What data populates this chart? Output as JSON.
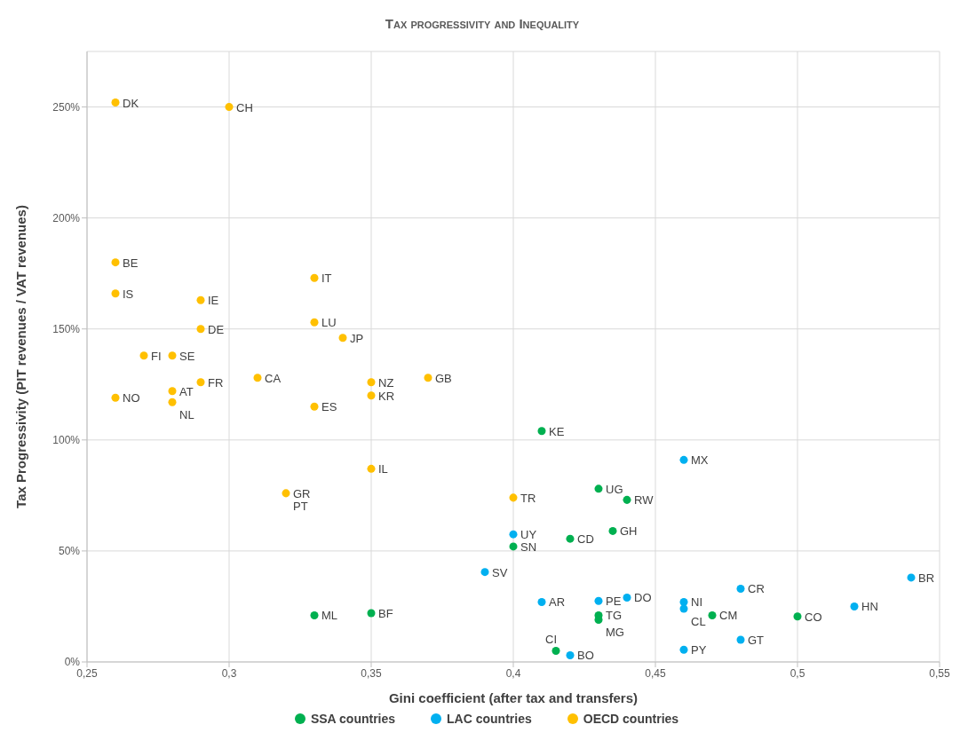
{
  "chart_data": {
    "type": "scatter",
    "title": "Tax progressivity and Inequality",
    "xlabel": "Gini coefficient (after tax and transfers)",
    "ylabel": "Tax Progressivity (PIT revenues / VAT revenues)",
    "xlim": [
      0.25,
      0.55
    ],
    "xticks": [
      {
        "value": 0.25,
        "label": "0,25"
      },
      {
        "value": 0.3,
        "label": "0,3"
      },
      {
        "value": 0.35,
        "label": "0,35"
      },
      {
        "value": 0.4,
        "label": "0,4"
      },
      {
        "value": 0.45,
        "label": "0,45"
      },
      {
        "value": 0.5,
        "label": "0,5"
      },
      {
        "value": 0.55,
        "label": "0,55"
      }
    ],
    "ylim": [
      0,
      275
    ],
    "yticks": [
      {
        "value": 0,
        "label": "0%"
      },
      {
        "value": 50,
        "label": "50%"
      },
      {
        "value": 100,
        "label": "100%"
      },
      {
        "value": 150,
        "label": "150%"
      },
      {
        "value": 200,
        "label": "200%"
      },
      {
        "value": 250,
        "label": "250%"
      }
    ],
    "grid": true,
    "legend": "bottom",
    "marker": "circle",
    "series": [
      {
        "name": "SSA countries",
        "color": "#00b050",
        "x": [
          0.41,
          0.43,
          0.44,
          0.435,
          0.42,
          0.4,
          0.33,
          0.35,
          0.47,
          0.5,
          0.43,
          0.43,
          0.415
        ],
        "values": [
          104,
          78,
          73,
          59,
          55.5,
          52,
          21,
          22,
          21,
          20.5,
          21,
          19,
          5
        ]
      },
      {
        "name": "LAC countries",
        "color": "#00b0f0",
        "x": [
          0.46,
          0.4,
          0.39,
          0.41,
          0.43,
          0.44,
          0.46,
          0.46,
          0.48,
          0.54,
          0.52,
          0.48,
          0.46,
          0.42
        ],
        "values": [
          91,
          57.5,
          40.5,
          27,
          27.5,
          29,
          27,
          24,
          33,
          38,
          25,
          10,
          5.5,
          3
        ]
      },
      {
        "name": "OECD countries",
        "color": "#ffc000",
        "x": [
          0.26,
          0.3,
          0.26,
          0.26,
          0.33,
          0.29,
          0.33,
          0.29,
          0.34,
          0.27,
          0.28,
          0.31,
          0.37,
          0.29,
          0.35,
          0.28,
          0.35,
          0.26,
          0.28,
          0.33,
          0.35,
          0.32,
          0.4
        ],
        "values": [
          252,
          250,
          180,
          166,
          173,
          163,
          153,
          150,
          146,
          138,
          138,
          128,
          128,
          126,
          126,
          122,
          120,
          119,
          117,
          115,
          87,
          76,
          74
        ]
      }
    ],
    "annotations": [
      {
        "text": "KE",
        "x": 0.41,
        "y": 104
      },
      {
        "text": "UG",
        "x": 0.43,
        "y": 78
      },
      {
        "text": "RW",
        "x": 0.44,
        "y": 73
      },
      {
        "text": "GH",
        "x": 0.435,
        "y": 59
      },
      {
        "text": "CD",
        "x": 0.42,
        "y": 55.5
      },
      {
        "text": "SN",
        "x": 0.4,
        "y": 52
      },
      {
        "text": "ML",
        "x": 0.33,
        "y": 21
      },
      {
        "text": "BF",
        "x": 0.35,
        "y": 22
      },
      {
        "text": "CM",
        "x": 0.47,
        "y": 21
      },
      {
        "text": "CO",
        "x": 0.5,
        "y": 20.5
      },
      {
        "text": "TG",
        "x": 0.43,
        "y": 21
      },
      {
        "text": "MG",
        "x": 0.43,
        "y": 19
      },
      {
        "text": "CI",
        "x": 0.415,
        "y": 5
      },
      {
        "text": "MX",
        "x": 0.46,
        "y": 91
      },
      {
        "text": "UY",
        "x": 0.4,
        "y": 57.5
      },
      {
        "text": "SV",
        "x": 0.39,
        "y": 40.5
      },
      {
        "text": "AR",
        "x": 0.41,
        "y": 27
      },
      {
        "text": "PE",
        "x": 0.43,
        "y": 27.5
      },
      {
        "text": "DO",
        "x": 0.44,
        "y": 29
      },
      {
        "text": "NI",
        "x": 0.46,
        "y": 27
      },
      {
        "text": "CL",
        "x": 0.46,
        "y": 24
      },
      {
        "text": "CR",
        "x": 0.48,
        "y": 33
      },
      {
        "text": "BR",
        "x": 0.54,
        "y": 38
      },
      {
        "text": "HN",
        "x": 0.52,
        "y": 25
      },
      {
        "text": "GT",
        "x": 0.48,
        "y": 10
      },
      {
        "text": "PY",
        "x": 0.46,
        "y": 5.5
      },
      {
        "text": "BO",
        "x": 0.42,
        "y": 3
      },
      {
        "text": "DK",
        "x": 0.26,
        "y": 252
      },
      {
        "text": "CH",
        "x": 0.3,
        "y": 250
      },
      {
        "text": "BE",
        "x": 0.26,
        "y": 180
      },
      {
        "text": "IS",
        "x": 0.26,
        "y": 166
      },
      {
        "text": "IT",
        "x": 0.33,
        "y": 173
      },
      {
        "text": "IE",
        "x": 0.29,
        "y": 163
      },
      {
        "text": "LU",
        "x": 0.33,
        "y": 153
      },
      {
        "text": "DE",
        "x": 0.29,
        "y": 150
      },
      {
        "text": "JP",
        "x": 0.34,
        "y": 146
      },
      {
        "text": "FI",
        "x": 0.27,
        "y": 138
      },
      {
        "text": "SE",
        "x": 0.28,
        "y": 138
      },
      {
        "text": "CA",
        "x": 0.31,
        "y": 128
      },
      {
        "text": "GB",
        "x": 0.37,
        "y": 128
      },
      {
        "text": "FR",
        "x": 0.29,
        "y": 126
      },
      {
        "text": "NZ",
        "x": 0.35,
        "y": 126
      },
      {
        "text": "AT",
        "x": 0.28,
        "y": 122
      },
      {
        "text": "KR",
        "x": 0.35,
        "y": 120
      },
      {
        "text": "NO",
        "x": 0.26,
        "y": 119
      },
      {
        "text": "NL",
        "x": 0.28,
        "y": 117
      },
      {
        "text": "ES",
        "x": 0.33,
        "y": 115
      },
      {
        "text": "IL",
        "x": 0.35,
        "y": 87
      },
      {
        "text": "GR",
        "x": 0.32,
        "y": 76
      },
      {
        "text": "PT",
        "x": 0.32,
        "y": 76
      },
      {
        "text": "TR",
        "x": 0.4,
        "y": 74
      }
    ]
  }
}
